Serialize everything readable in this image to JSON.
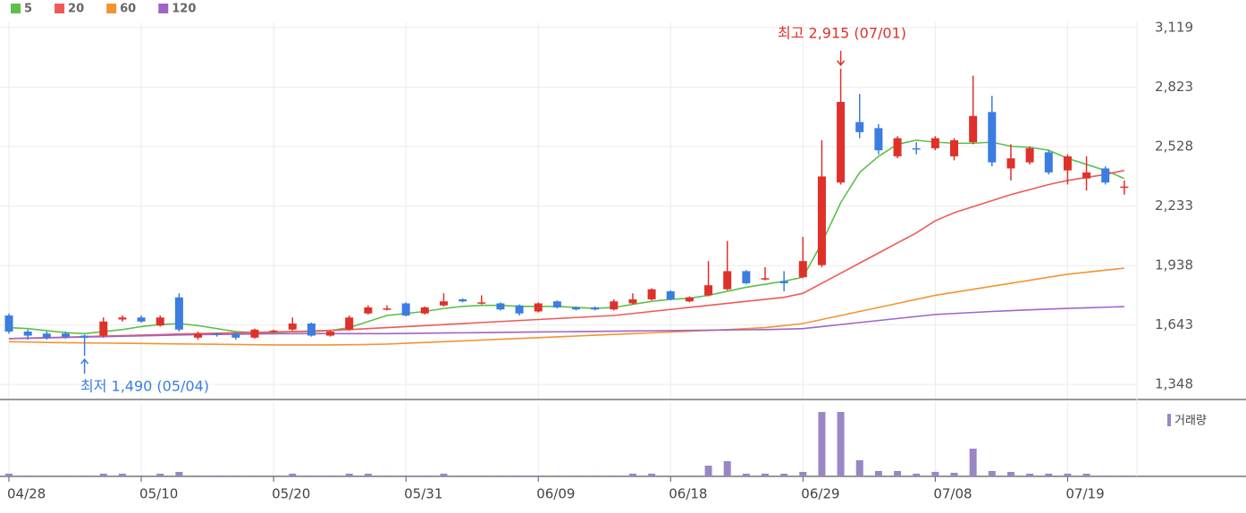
{
  "chart_data": {
    "type": "candlestick",
    "categories": [
      "04/28",
      null,
      null,
      null,
      null,
      null,
      null,
      "05/10",
      null,
      null,
      null,
      null,
      null,
      null,
      "05/20",
      null,
      null,
      null,
      null,
      null,
      null,
      "05/31",
      null,
      null,
      null,
      null,
      null,
      null,
      "06/09",
      null,
      null,
      null,
      null,
      null,
      null,
      "06/18",
      null,
      null,
      null,
      null,
      null,
      null,
      "06/29",
      null,
      null,
      null,
      null,
      null,
      null,
      "07/08",
      null,
      null,
      null,
      null,
      null,
      null,
      "07/19",
      null,
      null,
      null
    ],
    "open": [
      1690,
      1610,
      1600,
      1600,
      1590,
      1590,
      1670,
      1680,
      1640,
      1780,
      1580,
      1600,
      1600,
      1580,
      1610,
      1620,
      1650,
      1590,
      1620,
      1700,
      1720,
      1750,
      1700,
      1740,
      1770,
      1750,
      1750,
      1740,
      1710,
      1760,
      1730,
      1730,
      1720,
      1750,
      1770,
      1810,
      1760,
      1790,
      1820,
      1910,
      1870,
      1860,
      1880,
      1940,
      2350,
      2650,
      2620,
      2480,
      2520,
      2520,
      2480,
      2550,
      2700,
      2420,
      2450,
      2500,
      2410,
      2370,
      2420,
      2330
    ],
    "high": [
      1700,
      1620,
      1610,
      1610,
      1595,
      1680,
      1690,
      1690,
      1690,
      1800,
      1610,
      1605,
      1605,
      1625,
      1620,
      1680,
      1655,
      1615,
      1690,
      1740,
      1740,
      1755,
      1735,
      1800,
      1775,
      1790,
      1755,
      1745,
      1755,
      1765,
      1735,
      1735,
      1770,
      1800,
      1825,
      1815,
      1785,
      1960,
      2060,
      1915,
      1930,
      1910,
      2080,
      2560,
      2915,
      2790,
      2640,
      2580,
      2550,
      2580,
      2570,
      2880,
      2780,
      2540,
      2530,
      2510,
      2490,
      2480,
      2430,
      2360
    ],
    "low": [
      1600,
      1570,
      1570,
      1575,
      1490,
      1580,
      1660,
      1655,
      1635,
      1610,
      1570,
      1585,
      1570,
      1575,
      1605,
      1615,
      1585,
      1585,
      1615,
      1695,
      1715,
      1685,
      1695,
      1735,
      1755,
      1745,
      1715,
      1690,
      1705,
      1725,
      1715,
      1715,
      1715,
      1745,
      1765,
      1765,
      1755,
      1785,
      1815,
      1845,
      1865,
      1810,
      1875,
      1930,
      2340,
      2570,
      2490,
      2470,
      2490,
      2510,
      2460,
      2540,
      2430,
      2360,
      2440,
      2390,
      2340,
      2310,
      2340,
      2290
    ],
    "close": [
      1610,
      1590,
      1580,
      1585,
      1580,
      1660,
      1680,
      1660,
      1680,
      1620,
      1600,
      1595,
      1580,
      1620,
      1615,
      1650,
      1590,
      1610,
      1680,
      1730,
      1725,
      1690,
      1730,
      1760,
      1760,
      1755,
      1720,
      1700,
      1750,
      1730,
      1720,
      1720,
      1760,
      1770,
      1820,
      1770,
      1780,
      1840,
      1910,
      1850,
      1875,
      1850,
      1960,
      2380,
      2750,
      2600,
      2510,
      2570,
      2515,
      2570,
      2560,
      2680,
      2450,
      2470,
      2520,
      2400,
      2480,
      2400,
      2350,
      2330
    ],
    "up_color": "#e0302a",
    "down_color": "#3b7de0",
    "series": [
      {
        "name": "5",
        "color": "#5cc04a",
        "values": [
          1630,
          1625,
          1615,
          1605,
          1600,
          1610,
          1620,
          1635,
          1645,
          1650,
          1640,
          1625,
          1610,
          1605,
          1605,
          1610,
          1610,
          1615,
          1630,
          1660,
          1690,
          1700,
          1710,
          1725,
          1735,
          1740,
          1740,
          1735,
          1735,
          1735,
          1730,
          1725,
          1730,
          1745,
          1760,
          1770,
          1775,
          1790,
          1810,
          1830,
          1845,
          1860,
          1880,
          2050,
          2250,
          2400,
          2480,
          2540,
          2560,
          2550,
          2545,
          2545,
          2550,
          2530,
          2525,
          2510,
          2470,
          2440,
          2410,
          2370
        ]
      },
      {
        "name": "20",
        "color": "#ef5a55",
        "values": [
          1575,
          1578,
          1580,
          1582,
          1585,
          1588,
          1590,
          1593,
          1595,
          1598,
          1600,
          1602,
          1604,
          1606,
          1608,
          1610,
          1613,
          1616,
          1620,
          1625,
          1630,
          1635,
          1640,
          1645,
          1650,
          1655,
          1660,
          1665,
          1670,
          1675,
          1680,
          1685,
          1690,
          1700,
          1710,
          1720,
          1730,
          1740,
          1750,
          1760,
          1770,
          1780,
          1800,
          1850,
          1900,
          1950,
          2000,
          2050,
          2100,
          2160,
          2200,
          2230,
          2260,
          2290,
          2315,
          2340,
          2360,
          2375,
          2390,
          2410
        ]
      },
      {
        "name": "60",
        "color": "#f29432",
        "values": [
          1560,
          1558,
          1556,
          1555,
          1554,
          1553,
          1552,
          1551,
          1550,
          1549,
          1548,
          1547,
          1546,
          1545,
          1544,
          1544,
          1544,
          1544,
          1545,
          1546,
          1548,
          1552,
          1556,
          1560,
          1564,
          1568,
          1572,
          1576,
          1580,
          1584,
          1588,
          1592,
          1596,
          1600,
          1604,
          1608,
          1612,
          1616,
          1620,
          1625,
          1630,
          1640,
          1650,
          1670,
          1690,
          1710,
          1730,
          1750,
          1770,
          1790,
          1805,
          1820,
          1835,
          1850,
          1865,
          1880,
          1895,
          1905,
          1915,
          1925
        ]
      },
      {
        "name": "120",
        "color": "#a064c8",
        "values": [
          1575,
          1577,
          1579,
          1581,
          1583,
          1585,
          1587,
          1589,
          1591,
          1593,
          1595,
          1596,
          1597,
          1598,
          1599,
          1600,
          1600,
          1600,
          1600,
          1600,
          1600,
          1601,
          1602,
          1603,
          1604,
          1605,
          1606,
          1607,
          1608,
          1609,
          1610,
          1611,
          1612,
          1613,
          1614,
          1615,
          1616,
          1617,
          1618,
          1619,
          1620,
          1622,
          1625,
          1635,
          1645,
          1655,
          1665,
          1675,
          1685,
          1695,
          1700,
          1705,
          1710,
          1714,
          1718,
          1722,
          1725,
          1728,
          1731,
          1734
        ]
      }
    ],
    "ylim": [
      1273,
      3145
    ],
    "yticks": [
      {
        "value": 1348,
        "label": "1,348"
      },
      {
        "value": 1643,
        "label": "1,643"
      },
      {
        "value": 1938,
        "label": "1,938"
      },
      {
        "value": 2233,
        "label": "2,233"
      },
      {
        "value": 2528,
        "label": "2,528"
      },
      {
        "value": 2823,
        "label": "2,823"
      },
      {
        "value": 3119,
        "label": "3,119"
      }
    ],
    "grid": true,
    "annotations": [
      {
        "text": "최고 2,915 (07/01)",
        "color": "#e0302a"
      },
      {
        "text": "최저 1,490 (05/04)",
        "color": "#3b7de0"
      }
    ],
    "volume": {
      "label": "거래량",
      "color": "#9b86c4",
      "ylim": [
        0,
        80
      ],
      "values": [
        3,
        1,
        1,
        1,
        1,
        3,
        3,
        1,
        3,
        5,
        1,
        1,
        1,
        1,
        1,
        3,
        1,
        1,
        3,
        3,
        1,
        1,
        1,
        3,
        1,
        1,
        1,
        1,
        1,
        1,
        1,
        1,
        1,
        3,
        3,
        1,
        1,
        12,
        17,
        3,
        3,
        3,
        5,
        72,
        72,
        18,
        6,
        6,
        3,
        5,
        4,
        31,
        6,
        5,
        3,
        3,
        3,
        3,
        1,
        1
      ]
    }
  }
}
